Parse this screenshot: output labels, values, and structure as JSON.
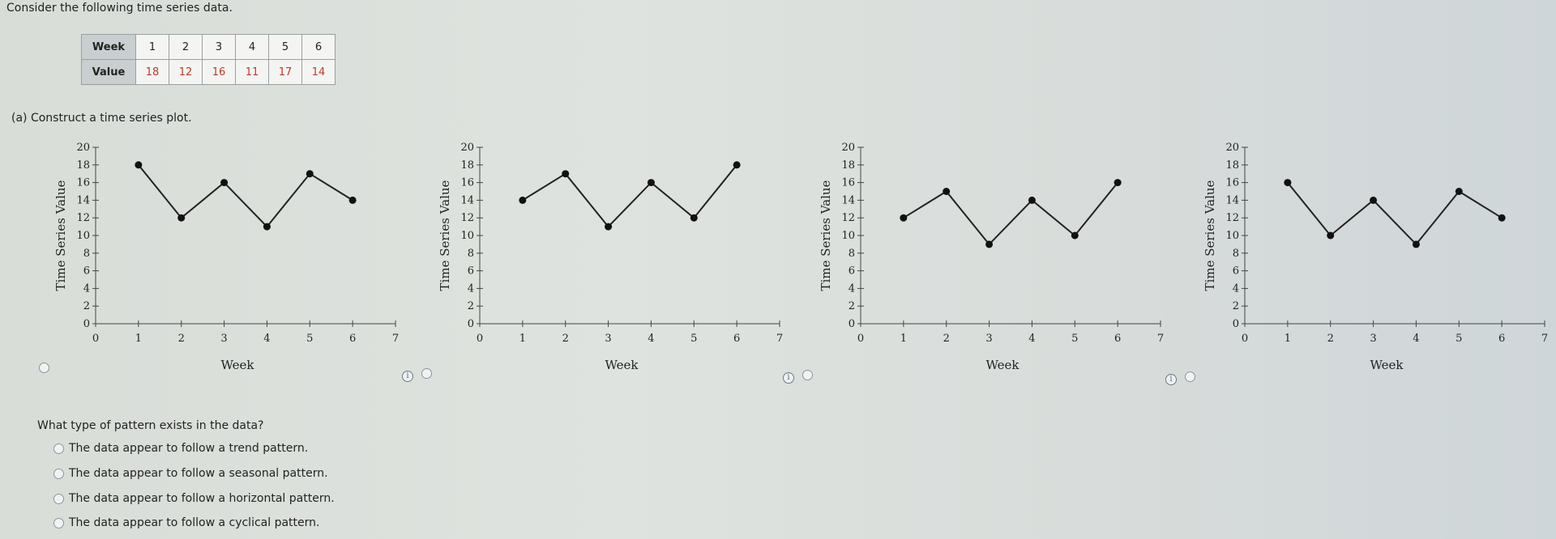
{
  "intro": "Consider the following time series data.",
  "table": {
    "row_headers": [
      "Week",
      "Value"
    ],
    "weeks": [
      "1",
      "2",
      "3",
      "4",
      "5",
      "6"
    ],
    "values": [
      "18",
      "12",
      "16",
      "11",
      "17",
      "14"
    ]
  },
  "part_a": "(a)  Construct a time series plot.",
  "chart_data": [
    {
      "type": "line",
      "x": [
        1,
        2,
        3,
        4,
        5,
        6
      ],
      "y": [
        18,
        12,
        16,
        11,
        17,
        14
      ],
      "xlabel": "Week",
      "ylabel": "Time Series Value",
      "xlim": [
        0,
        7
      ],
      "ylim": [
        0,
        20
      ],
      "xticks": [
        "0",
        "1",
        "2",
        "3",
        "4",
        "5",
        "6",
        "7"
      ],
      "yticks": [
        "0",
        "2",
        "4",
        "6",
        "8",
        "10",
        "12",
        "14",
        "16",
        "18",
        "20"
      ]
    },
    {
      "type": "line",
      "x": [
        1,
        2,
        3,
        4,
        5,
        6
      ],
      "y": [
        14,
        17,
        11,
        16,
        12,
        18
      ],
      "xlabel": "Week",
      "ylabel": "Time Series Value",
      "xlim": [
        0,
        7
      ],
      "ylim": [
        0,
        20
      ],
      "xticks": [
        "0",
        "1",
        "2",
        "3",
        "4",
        "5",
        "6",
        "7"
      ],
      "yticks": [
        "0",
        "2",
        "4",
        "6",
        "8",
        "10",
        "12",
        "14",
        "16",
        "18",
        "20"
      ]
    },
    {
      "type": "line",
      "x": [
        1,
        2,
        3,
        4,
        5,
        6
      ],
      "y": [
        12,
        15,
        9,
        14,
        10,
        16
      ],
      "xlabel": "Week",
      "ylabel": "Time Series Value",
      "xlim": [
        0,
        7
      ],
      "ylim": [
        0,
        20
      ],
      "xticks": [
        "0",
        "1",
        "2",
        "3",
        "4",
        "5",
        "6",
        "7"
      ],
      "yticks": [
        "0",
        "2",
        "4",
        "6",
        "8",
        "10",
        "12",
        "14",
        "16",
        "18",
        "20"
      ]
    },
    {
      "type": "line",
      "x": [
        1,
        2,
        3,
        4,
        5,
        6
      ],
      "y": [
        16,
        10,
        14,
        9,
        15,
        12
      ],
      "xlabel": "Week",
      "ylabel": "Time Series Value",
      "xlim": [
        0,
        7
      ],
      "ylim": [
        0,
        20
      ],
      "xticks": [
        "0",
        "1",
        "2",
        "3",
        "4",
        "5",
        "6",
        "7"
      ],
      "yticks": [
        "0",
        "2",
        "4",
        "6",
        "8",
        "10",
        "12",
        "14",
        "16",
        "18",
        "20"
      ]
    }
  ],
  "question": "What type of pattern exists in the data?",
  "answers": [
    "The data appear to follow a trend pattern.",
    "The data appear to follow a seasonal pattern.",
    "The data appear to follow a horizontal pattern.",
    "The data appear to follow a cyclical pattern."
  ],
  "icons": {
    "info": "info-icon",
    "radio": "radio-button"
  }
}
